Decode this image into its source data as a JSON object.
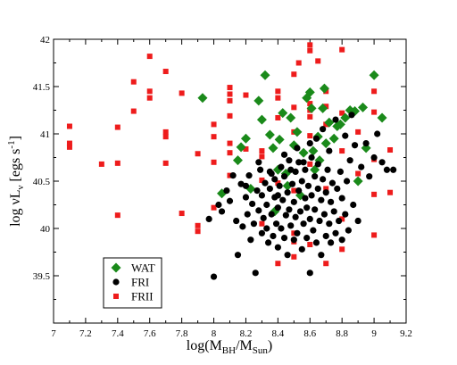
{
  "chart_data": {
    "type": "scatter",
    "xlabel": {
      "base": "log(M",
      "sub1": "BH",
      "mid": "/M",
      "sub2": "Sun",
      "end": ")"
    },
    "ylabel": {
      "base": "log νL",
      "sub1": "ν",
      "mid": " [egs s",
      "sup": "-1",
      "end": "]"
    },
    "xlim": [
      7,
      9.2
    ],
    "ylim": [
      39,
      42
    ],
    "xticks": [
      "7",
      "7.2",
      "7.4",
      "7.6",
      "7.8",
      "8",
      "8.2",
      "8.4",
      "8.6",
      "8.8",
      "9",
      "9.2"
    ],
    "yticks": [
      "39.5",
      "40",
      "40.5",
      "41",
      "41.5",
      "42"
    ],
    "legend_position": "lower-left",
    "series": [
      {
        "name": "WAT",
        "marker": "diamond",
        "color": "#1a8a1a",
        "points": [
          [
            7.93,
            41.38
          ],
          [
            8.05,
            40.37
          ],
          [
            8.15,
            40.72
          ],
          [
            8.17,
            40.86
          ],
          [
            8.2,
            40.95
          ],
          [
            8.23,
            40.42
          ],
          [
            8.28,
            41.35
          ],
          [
            8.3,
            41.15
          ],
          [
            8.32,
            41.62
          ],
          [
            8.35,
            40.99
          ],
          [
            8.37,
            40.85
          ],
          [
            8.38,
            40.18
          ],
          [
            8.4,
            40.62
          ],
          [
            8.41,
            40.94
          ],
          [
            8.43,
            41.22
          ],
          [
            8.45,
            40.58
          ],
          [
            8.48,
            41.17
          ],
          [
            8.5,
            40.88
          ],
          [
            8.52,
            41.02
          ],
          [
            8.54,
            40.35
          ],
          [
            8.56,
            40.8
          ],
          [
            8.58,
            41.38
          ],
          [
            8.6,
            41.44
          ],
          [
            8.61,
            41.27
          ],
          [
            8.63,
            40.62
          ],
          [
            8.65,
            40.97
          ],
          [
            8.66,
            40.72
          ],
          [
            8.68,
            41.27
          ],
          [
            8.69,
            41.48
          ],
          [
            8.7,
            40.9
          ],
          [
            8.72,
            41.12
          ],
          [
            8.75,
            40.95
          ],
          [
            8.77,
            41.08
          ],
          [
            8.79,
            41.1
          ],
          [
            8.82,
            41.17
          ],
          [
            8.85,
            41.25
          ],
          [
            8.88,
            41.24
          ],
          [
            8.9,
            40.5
          ],
          [
            8.93,
            41.28
          ],
          [
            8.95,
            40.85
          ],
          [
            9.0,
            41.62
          ],
          [
            9.05,
            41.17
          ],
          [
            8.46,
            40.45
          ],
          [
            8.62,
            40.82
          ]
        ]
      },
      {
        "name": "FRI",
        "marker": "circle",
        "color": "#000000",
        "points": [
          [
            7.97,
            40.1
          ],
          [
            8.0,
            39.49
          ],
          [
            8.03,
            40.25
          ],
          [
            8.05,
            40.18
          ],
          [
            8.08,
            40.4
          ],
          [
            8.1,
            40.29
          ],
          [
            8.12,
            40.56
          ],
          [
            8.14,
            40.08
          ],
          [
            8.15,
            39.72
          ],
          [
            8.17,
            40.47
          ],
          [
            8.18,
            40.02
          ],
          [
            8.2,
            40.33
          ],
          [
            8.21,
            40.15
          ],
          [
            8.22,
            40.56
          ],
          [
            8.23,
            39.88
          ],
          [
            8.24,
            40.26
          ],
          [
            8.25,
            40.05
          ],
          [
            8.26,
            39.53
          ],
          [
            8.27,
            40.4
          ],
          [
            8.28,
            40.19
          ],
          [
            8.29,
            40.62
          ],
          [
            8.3,
            39.95
          ],
          [
            8.3,
            40.35
          ],
          [
            8.31,
            40.11
          ],
          [
            8.32,
            40.48
          ],
          [
            8.33,
            40.0
          ],
          [
            8.33,
            40.25
          ],
          [
            8.34,
            39.85
          ],
          [
            8.35,
            40.42
          ],
          [
            8.35,
            40.6
          ],
          [
            8.36,
            40.15
          ],
          [
            8.37,
            39.92
          ],
          [
            8.38,
            40.33
          ],
          [
            8.38,
            40.52
          ],
          [
            8.39,
            40.05
          ],
          [
            8.4,
            39.8
          ],
          [
            8.4,
            40.22
          ],
          [
            8.41,
            40.45
          ],
          [
            8.42,
            40.65
          ],
          [
            8.42,
            40.0
          ],
          [
            8.43,
            40.3
          ],
          [
            8.44,
            39.9
          ],
          [
            8.44,
            40.55
          ],
          [
            8.45,
            40.14
          ],
          [
            8.46,
            40.38
          ],
          [
            8.46,
            39.72
          ],
          [
            8.47,
            40.72
          ],
          [
            8.47,
            40.2
          ],
          [
            8.48,
            40.03
          ],
          [
            8.49,
            40.47
          ],
          [
            8.5,
            39.88
          ],
          [
            8.5,
            40.28
          ],
          [
            8.51,
            40.6
          ],
          [
            8.51,
            40.12
          ],
          [
            8.52,
            39.95
          ],
          [
            8.53,
            40.4
          ],
          [
            8.53,
            40.7
          ],
          [
            8.54,
            40.18
          ],
          [
            8.55,
            39.78
          ],
          [
            8.55,
            40.5
          ],
          [
            8.56,
            40.05
          ],
          [
            8.57,
            40.32
          ],
          [
            8.57,
            40.62
          ],
          [
            8.58,
            39.9
          ],
          [
            8.58,
            40.22
          ],
          [
            8.59,
            40.45
          ],
          [
            8.6,
            39.53
          ],
          [
            8.6,
            40.1
          ],
          [
            8.61,
            40.75
          ],
          [
            8.61,
            40.35
          ],
          [
            8.62,
            39.98
          ],
          [
            8.63,
            40.55
          ],
          [
            8.63,
            40.2
          ],
          [
            8.64,
            39.85
          ],
          [
            8.65,
            40.42
          ],
          [
            8.65,
            40.68
          ],
          [
            8.66,
            40.08
          ],
          [
            8.67,
            40.3
          ],
          [
            8.67,
            39.72
          ],
          [
            8.68,
            40.52
          ],
          [
            8.69,
            40.15
          ],
          [
            8.7,
            39.92
          ],
          [
            8.7,
            40.38
          ],
          [
            8.71,
            40.62
          ],
          [
            8.72,
            40.05
          ],
          [
            8.73,
            40.28
          ],
          [
            8.73,
            39.85
          ],
          [
            8.74,
            40.48
          ],
          [
            8.75,
            40.18
          ],
          [
            8.76,
            39.95
          ],
          [
            8.77,
            40.42
          ],
          [
            8.78,
            40.08
          ],
          [
            8.79,
            40.6
          ],
          [
            8.8,
            39.88
          ],
          [
            8.8,
            40.32
          ],
          [
            8.82,
            40.15
          ],
          [
            8.83,
            40.5
          ],
          [
            8.84,
            39.98
          ],
          [
            8.85,
            40.72
          ],
          [
            8.87,
            40.25
          ],
          [
            8.88,
            40.88
          ],
          [
            8.9,
            40.08
          ],
          [
            8.92,
            40.65
          ],
          [
            8.95,
            40.9
          ],
          [
            8.97,
            40.55
          ],
          [
            9.0,
            40.75
          ],
          [
            9.02,
            41.0
          ],
          [
            9.05,
            40.7
          ],
          [
            9.08,
            40.62
          ],
          [
            9.12,
            40.62
          ],
          [
            8.36,
            40.58
          ],
          [
            8.44,
            40.78
          ],
          [
            8.52,
            40.85
          ],
          [
            8.6,
            40.9
          ],
          [
            8.68,
            41.05
          ],
          [
            8.76,
            41.15
          ],
          [
            8.82,
            40.98
          ],
          [
            8.86,
            41.2
          ],
          [
            8.72,
            40.82
          ],
          [
            8.64,
            40.95
          ],
          [
            8.48,
            40.62
          ],
          [
            8.56,
            40.7
          ],
          [
            8.2,
            40.45
          ],
          [
            8.28,
            40.7
          ],
          [
            8.4,
            40.35
          ]
        ]
      },
      {
        "name": "FRII",
        "marker": "square",
        "color": "#ee1c1c",
        "points": [
          [
            7.1,
            41.08
          ],
          [
            7.1,
            40.9
          ],
          [
            7.1,
            40.86
          ],
          [
            7.3,
            40.68
          ],
          [
            7.4,
            41.07
          ],
          [
            7.4,
            40.69
          ],
          [
            7.4,
            40.14
          ],
          [
            7.5,
            41.55
          ],
          [
            7.5,
            41.24
          ],
          [
            7.6,
            41.82
          ],
          [
            7.6,
            41.45
          ],
          [
            7.6,
            41.38
          ],
          [
            7.7,
            41.66
          ],
          [
            7.7,
            41.02
          ],
          [
            7.7,
            40.97
          ],
          [
            7.7,
            40.69
          ],
          [
            7.8,
            41.43
          ],
          [
            7.8,
            40.16
          ],
          [
            7.9,
            40.79
          ],
          [
            7.9,
            40.03
          ],
          [
            7.9,
            39.97
          ],
          [
            8.0,
            41.1
          ],
          [
            8.0,
            40.97
          ],
          [
            8.0,
            40.7
          ],
          [
            8.0,
            40.22
          ],
          [
            8.1,
            41.49
          ],
          [
            8.1,
            41.42
          ],
          [
            8.1,
            41.35
          ],
          [
            8.1,
            41.19
          ],
          [
            8.1,
            40.9
          ],
          [
            8.1,
            40.8
          ],
          [
            8.1,
            40.56
          ],
          [
            8.2,
            41.41
          ],
          [
            8.2,
            40.84
          ],
          [
            8.3,
            40.82
          ],
          [
            8.3,
            40.76
          ],
          [
            8.3,
            40.51
          ],
          [
            8.4,
            41.45
          ],
          [
            8.4,
            41.38
          ],
          [
            8.4,
            41.17
          ],
          [
            8.4,
            40.48
          ],
          [
            8.4,
            39.63
          ],
          [
            8.5,
            41.63
          ],
          [
            8.5,
            41.28
          ],
          [
            8.5,
            41.02
          ],
          [
            8.5,
            40.4
          ],
          [
            8.5,
            39.95
          ],
          [
            8.5,
            39.86
          ],
          [
            8.5,
            39.7
          ],
          [
            8.6,
            41.94
          ],
          [
            8.6,
            41.88
          ],
          [
            8.6,
            41.32
          ],
          [
            8.6,
            41.25
          ],
          [
            8.6,
            41.18
          ],
          [
            8.6,
            40.98
          ],
          [
            8.6,
            40.68
          ],
          [
            8.6,
            39.83
          ],
          [
            8.7,
            41.45
          ],
          [
            8.7,
            41.29
          ],
          [
            8.7,
            41.1
          ],
          [
            8.7,
            40.42
          ],
          [
            8.7,
            39.63
          ],
          [
            8.8,
            41.89
          ],
          [
            8.8,
            41.22
          ],
          [
            8.8,
            40.82
          ],
          [
            8.8,
            40.1
          ],
          [
            8.8,
            39.78
          ],
          [
            8.9,
            41.02
          ],
          [
            8.9,
            40.58
          ],
          [
            9.0,
            41.45
          ],
          [
            9.0,
            41.23
          ],
          [
            9.0,
            40.73
          ],
          [
            9.0,
            40.36
          ],
          [
            9.0,
            39.93
          ],
          [
            9.1,
            40.83
          ],
          [
            9.1,
            40.38
          ],
          [
            8.53,
            41.75
          ],
          [
            8.65,
            41.77
          ],
          [
            8.3,
            40.05
          ]
        ]
      }
    ]
  }
}
